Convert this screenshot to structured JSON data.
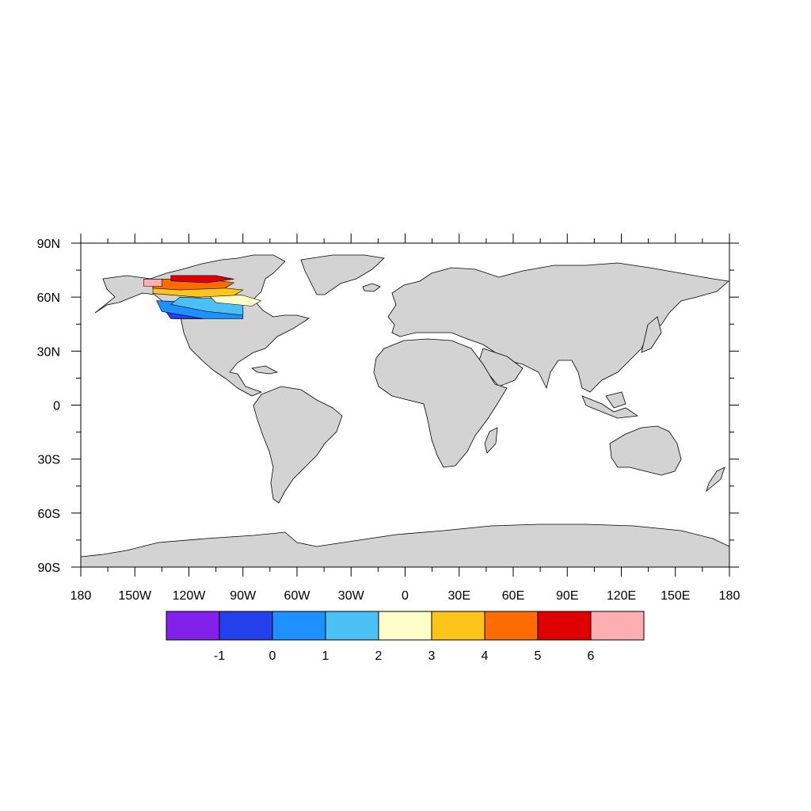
{
  "map": {
    "projection": "cylindrical-equidistant",
    "land_color": "#d3d3d3",
    "ocean_color": "#ffffff",
    "lat_ticks": [
      "90N",
      "60N",
      "30N",
      "0",
      "30S",
      "60S",
      "90S"
    ],
    "lon_ticks": [
      "180",
      "150W",
      "120W",
      "90W",
      "60W",
      "30W",
      "0",
      "30E",
      "60E",
      "90E",
      "120E",
      "150E",
      "180"
    ],
    "lat_range": [
      -90,
      90
    ],
    "lon_range": [
      -180,
      180
    ],
    "data_region": {
      "lon_range": [
        -140,
        -90
      ],
      "lat_range": [
        48,
        72
      ]
    }
  },
  "colorbar": {
    "levels": [
      "-1",
      "0",
      "1",
      "2",
      "3",
      "4",
      "5",
      "6"
    ],
    "colors": [
      "#8220ea",
      "#2440ea",
      "#1e90ff",
      "#4bc0f5",
      "#fefecb",
      "#fec41a",
      "#fe6c00",
      "#e00000",
      "#feaeb0"
    ]
  }
}
